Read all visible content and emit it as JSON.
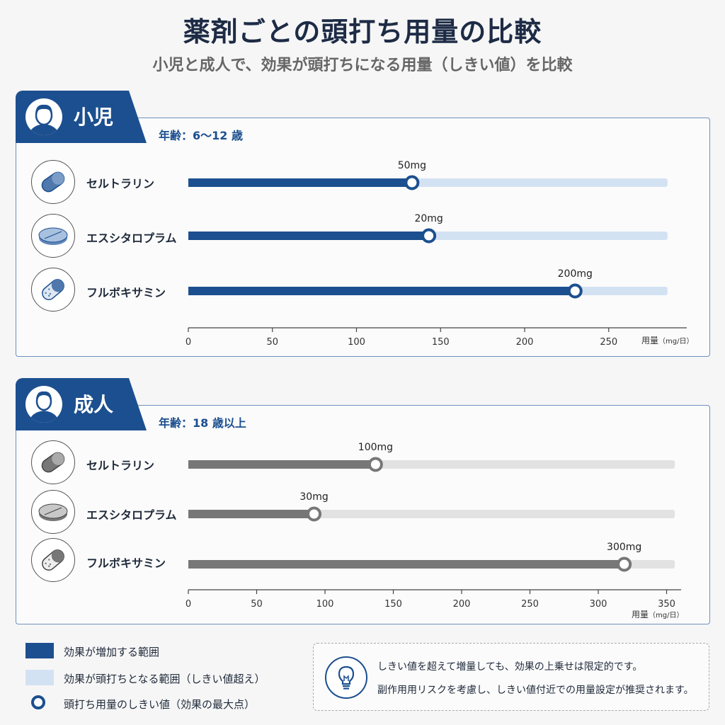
{
  "title": "薬剤ごとの頭打ち用量の比較",
  "subtitle": "小児と成人で、効果が頭打ちになる用量（しきい値）を比較",
  "colors": {
    "child_bar": "#1c4f8f",
    "child_track": "#d3e2f3",
    "adult_bar": "#777777",
    "adult_track": "#e2e2e2"
  },
  "chart_data": [
    {
      "type": "bar",
      "group_label": "小児",
      "age_label": "年齢：6〜12 歳",
      "xlabel": "用量",
      "xunit": "（mg/日）",
      "xticks": [
        0,
        50,
        100,
        150,
        200,
        250
      ],
      "xlim": [
        0,
        300
      ],
      "track_end": 285,
      "series": [
        {
          "name": "セルトラリン",
          "icon": "capsule-icon",
          "value": 133,
          "label": "50mg"
        },
        {
          "name": "エスシタロプラム",
          "icon": "tablet-icon",
          "value": 143,
          "label": "20mg"
        },
        {
          "name": "フルボキサミン",
          "icon": "dotted-capsule-icon",
          "value": 230,
          "label": "200mg"
        }
      ]
    },
    {
      "type": "bar",
      "group_label": "成人",
      "age_label": "年齢：18 歳以上",
      "xlabel": "用量",
      "xunit": "（mg/日）",
      "xticks": [
        0,
        50,
        100,
        150,
        200,
        250,
        300,
        350
      ],
      "xlim": [
        0,
        360
      ],
      "track_end": 356,
      "series": [
        {
          "name": "セルトラリン",
          "icon": "capsule-icon",
          "value": 137,
          "label": "100mg"
        },
        {
          "name": "エスシタロプラム",
          "icon": "tablet-icon",
          "value": 92,
          "label": "30mg"
        },
        {
          "name": "フルボキサミン",
          "icon": "dotted-capsule-icon",
          "value": 319,
          "label": "300mg"
        }
      ]
    }
  ],
  "legend": {
    "increase": "効果が増加する範囲",
    "plateau": "効果が頭打ちとなる範囲（しきい値超え）",
    "threshold": "頭打ち用量のしきい値（効果の最大点）"
  },
  "note": {
    "icon": "lightbulb-icon",
    "line1": "しきい値を超えて増量しても、効果の上乗せは限定的です。",
    "line2": "副作用用リスクを考慮し、しきい値付近での用量設定が推奨されます。"
  }
}
